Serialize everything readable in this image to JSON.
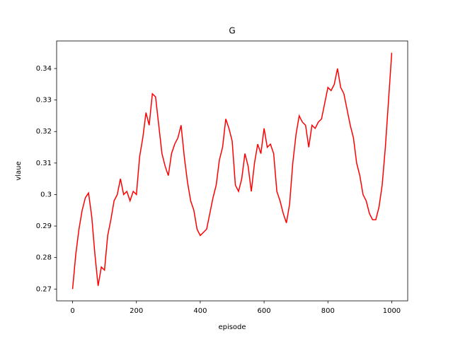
{
  "chart_data": {
    "type": "line",
    "title": "G",
    "x_label": "episode",
    "y_label": "vlaue",
    "xlim": [
      -50,
      1050
    ],
    "ylim": [
      0.26625,
      0.34875
    ],
    "xticks": [
      0,
      200,
      400,
      600,
      800,
      1000
    ],
    "yticks": [
      0.27,
      0.28,
      0.29,
      0.3,
      0.31,
      0.32,
      0.33,
      0.34
    ],
    "grid": false,
    "x": [
      0,
      10,
      20,
      30,
      40,
      50,
      60,
      70,
      80,
      90,
      100,
      110,
      120,
      130,
      140,
      150,
      160,
      170,
      180,
      190,
      200,
      210,
      220,
      230,
      240,
      250,
      260,
      270,
      280,
      290,
      300,
      310,
      320,
      330,
      340,
      350,
      360,
      370,
      380,
      390,
      400,
      410,
      420,
      430,
      440,
      450,
      460,
      470,
      480,
      490,
      500,
      510,
      520,
      530,
      540,
      550,
      560,
      570,
      580,
      590,
      600,
      610,
      620,
      630,
      640,
      650,
      660,
      670,
      680,
      690,
      700,
      710,
      720,
      730,
      740,
      750,
      760,
      770,
      780,
      790,
      800,
      810,
      820,
      830,
      840,
      850,
      860,
      870,
      880,
      890,
      900,
      910,
      920,
      930,
      940,
      950,
      960,
      970,
      980,
      990,
      1000
    ],
    "series": [
      {
        "name": "G",
        "color": "#ff0000",
        "values": [
          0.27,
          0.281,
          0.289,
          0.295,
          0.299,
          0.3005,
          0.293,
          0.281,
          0.271,
          0.277,
          0.276,
          0.287,
          0.292,
          0.298,
          0.3,
          0.305,
          0.3,
          0.301,
          0.298,
          0.301,
          0.3,
          0.312,
          0.318,
          0.326,
          0.322,
          0.332,
          0.331,
          0.322,
          0.313,
          0.309,
          0.306,
          0.313,
          0.316,
          0.318,
          0.322,
          0.312,
          0.304,
          0.298,
          0.295,
          0.289,
          0.287,
          0.288,
          0.289,
          0.294,
          0.299,
          0.303,
          0.311,
          0.315,
          0.324,
          0.321,
          0.317,
          0.303,
          0.301,
          0.305,
          0.313,
          0.309,
          0.301,
          0.31,
          0.316,
          0.313,
          0.321,
          0.315,
          0.316,
          0.313,
          0.301,
          0.298,
          0.294,
          0.291,
          0.297,
          0.31,
          0.319,
          0.325,
          0.323,
          0.322,
          0.315,
          0.322,
          0.321,
          0.323,
          0.324,
          0.329,
          0.334,
          0.333,
          0.335,
          0.34,
          0.334,
          0.332,
          0.327,
          0.322,
          0.318,
          0.31,
          0.306,
          0.3,
          0.298,
          0.294,
          0.292,
          0.292,
          0.296,
          0.303,
          0.315,
          0.33,
          0.345
        ]
      }
    ]
  }
}
